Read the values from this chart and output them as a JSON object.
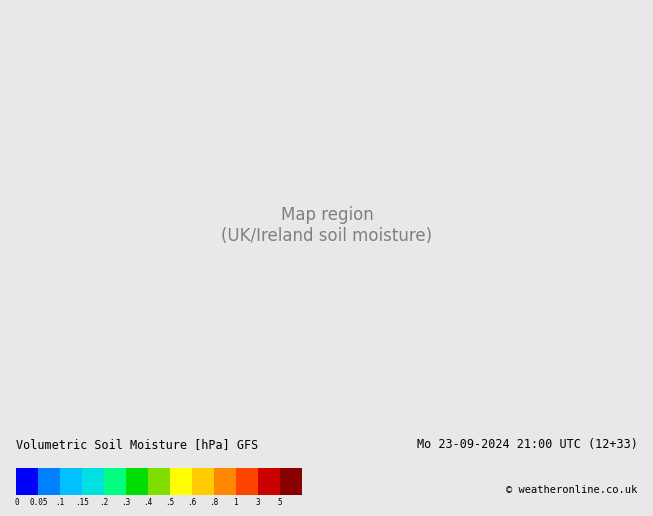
{
  "title_left": "Volumetric Soil Moisture [hPa] GFS",
  "title_right": "Mo 23-09-2024 21:00 UTC (12+33)",
  "title_right2": "© weatheronline.co.uk",
  "colorbar_levels": [
    0,
    0.05,
    0.1,
    0.15,
    0.2,
    0.3,
    0.4,
    0.5,
    0.6,
    0.8,
    1,
    3,
    5
  ],
  "colorbar_tick_labels": [
    "0",
    "0.05",
    ".1",
    ".15",
    ".2",
    ".3",
    ".4",
    ".5",
    ".6",
    ".8",
    "1",
    "3",
    "5"
  ],
  "colorbar_colors": [
    "#0000ff",
    "#0080ff",
    "#00c0ff",
    "#00e0e0",
    "#00ff80",
    "#00dd00",
    "#80dd00",
    "#ffff00",
    "#ffcc00",
    "#ff8800",
    "#ff4400",
    "#cc0000",
    "#880000"
  ],
  "bg_color": "#e8e8e8",
  "map_bg": "#e8e8e8",
  "land_color": "#e8e8e8",
  "sea_color": "#e8e8e8"
}
